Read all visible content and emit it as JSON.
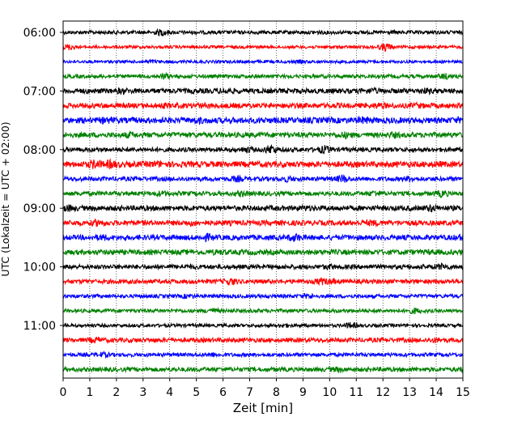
{
  "chart_data": {
    "type": "line",
    "title": "",
    "xlabel": "Zeit  [min]",
    "ylabel": "UTC (Lokalzeit = UTC + 02:00)",
    "xlim": [
      0,
      15
    ],
    "x_ticks": [
      "0",
      "1",
      "2",
      "3",
      "4",
      "5",
      "6",
      "7",
      "8",
      "9",
      "10",
      "11",
      "12",
      "13",
      "14",
      "15"
    ],
    "y_ticks": [
      "06:00",
      "07:00",
      "08:00",
      "09:00",
      "10:00",
      "11:00"
    ],
    "grid": "vertical dotted lines at each minute",
    "legend": "none",
    "traces_per_hour": 4,
    "minutes_per_trace": 15,
    "color_cycle": [
      "#000000",
      "#ff0000",
      "#0000ff",
      "#008000"
    ],
    "traces": [
      {
        "start": "06:00",
        "color": "#000000",
        "amplitude": 0.25,
        "bursts": [
          {
            "t": 3.7,
            "a": 0.55
          },
          {
            "t": 9.6,
            "a": 0.3
          }
        ]
      },
      {
        "start": "06:15",
        "color": "#ff0000",
        "amplitude": 0.2,
        "bursts": [
          {
            "t": 0.2,
            "a": 0.5
          },
          {
            "t": 12.1,
            "a": 0.65
          }
        ]
      },
      {
        "start": "06:30",
        "color": "#0000ff",
        "amplitude": 0.2,
        "bursts": [
          {
            "t": 3.3,
            "a": 0.3
          },
          {
            "t": 8.9,
            "a": 0.3
          }
        ]
      },
      {
        "start": "06:45",
        "color": "#008000",
        "amplitude": 0.25,
        "bursts": [
          {
            "t": 3.8,
            "a": 0.5
          },
          {
            "t": 14.3,
            "a": 0.5
          }
        ]
      },
      {
        "start": "07:00",
        "color": "#000000",
        "amplitude": 0.35,
        "bursts": [
          {
            "t": 2.2,
            "a": 0.5
          },
          {
            "t": 6.1,
            "a": 0.5
          },
          {
            "t": 11.6,
            "a": 0.5
          },
          {
            "t": 13.6,
            "a": 0.5
          }
        ]
      },
      {
        "start": "07:15",
        "color": "#ff0000",
        "amplitude": 0.35,
        "bursts": [
          {
            "t": 3.7,
            "a": 0.45
          },
          {
            "t": 5.2,
            "a": 0.45
          },
          {
            "t": 11.9,
            "a": 0.5
          },
          {
            "t": 13.3,
            "a": 0.45
          }
        ]
      },
      {
        "start": "07:30",
        "color": "#0000ff",
        "amplitude": 0.4,
        "bursts": [
          {
            "t": 1.6,
            "a": 0.55
          },
          {
            "t": 5.1,
            "a": 0.55
          },
          {
            "t": 11.3,
            "a": 0.6
          },
          {
            "t": 14.8,
            "a": 0.5
          }
        ]
      },
      {
        "start": "07:45",
        "color": "#008000",
        "amplitude": 0.35,
        "bursts": [
          {
            "t": 2.5,
            "a": 0.5
          },
          {
            "t": 10.6,
            "a": 0.55
          },
          {
            "t": 12.4,
            "a": 0.5
          }
        ]
      },
      {
        "start": "08:00",
        "color": "#000000",
        "amplitude": 0.3,
        "bursts": [
          {
            "t": 6.9,
            "a": 0.5
          },
          {
            "t": 7.8,
            "a": 0.75
          },
          {
            "t": 9.8,
            "a": 0.65
          }
        ]
      },
      {
        "start": "08:15",
        "color": "#ff0000",
        "amplitude": 0.4,
        "bursts": [
          {
            "t": 1.2,
            "a": 0.75
          },
          {
            "t": 1.8,
            "a": 0.7
          },
          {
            "t": 3.5,
            "a": 0.55
          },
          {
            "t": 14.0,
            "a": 0.5
          }
        ]
      },
      {
        "start": "08:30",
        "color": "#0000ff",
        "amplitude": 0.3,
        "bursts": [
          {
            "t": 6.5,
            "a": 0.5
          },
          {
            "t": 8.4,
            "a": 0.5
          },
          {
            "t": 10.5,
            "a": 0.65
          },
          {
            "t": 13.0,
            "a": 0.5
          }
        ]
      },
      {
        "start": "08:45",
        "color": "#008000",
        "amplitude": 0.3,
        "bursts": [
          {
            "t": 3.7,
            "a": 0.45
          },
          {
            "t": 6.7,
            "a": 0.5
          },
          {
            "t": 11.7,
            "a": 0.5
          },
          {
            "t": 14.2,
            "a": 0.55
          }
        ]
      },
      {
        "start": "09:00",
        "color": "#000000",
        "amplitude": 0.35,
        "bursts": [
          {
            "t": 0.2,
            "a": 0.55
          },
          {
            "t": 9.1,
            "a": 0.45
          },
          {
            "t": 13.8,
            "a": 0.6
          }
        ]
      },
      {
        "start": "09:15",
        "color": "#ff0000",
        "amplitude": 0.35,
        "bursts": [
          {
            "t": 1.3,
            "a": 0.55
          },
          {
            "t": 4.8,
            "a": 0.5
          },
          {
            "t": 11.6,
            "a": 0.5
          }
        ]
      },
      {
        "start": "09:30",
        "color": "#0000ff",
        "amplitude": 0.35,
        "bursts": [
          {
            "t": 1.5,
            "a": 0.5
          },
          {
            "t": 5.4,
            "a": 0.6
          },
          {
            "t": 8.7,
            "a": 0.65
          },
          {
            "t": 14.9,
            "a": 0.5
          }
        ]
      },
      {
        "start": "09:45",
        "color": "#008000",
        "amplitude": 0.35,
        "bursts": [
          {
            "t": 5.8,
            "a": 0.45
          },
          {
            "t": 13.8,
            "a": 0.45
          }
        ]
      },
      {
        "start": "10:00",
        "color": "#000000",
        "amplitude": 0.3,
        "bursts": [
          {
            "t": 4.6,
            "a": 0.4
          },
          {
            "t": 10.0,
            "a": 0.45
          },
          {
            "t": 14.2,
            "a": 0.55
          }
        ]
      },
      {
        "start": "10:15",
        "color": "#ff0000",
        "amplitude": 0.3,
        "bursts": [
          {
            "t": 6.3,
            "a": 0.6
          },
          {
            "t": 9.7,
            "a": 0.55
          },
          {
            "t": 10.0,
            "a": 0.5
          }
        ]
      },
      {
        "start": "10:30",
        "color": "#0000ff",
        "amplitude": 0.25,
        "bursts": [
          {
            "t": 4.7,
            "a": 0.4
          },
          {
            "t": 9.2,
            "a": 0.45
          }
        ]
      },
      {
        "start": "10:45",
        "color": "#008000",
        "amplitude": 0.25,
        "bursts": [
          {
            "t": 5.6,
            "a": 0.45
          },
          {
            "t": 13.2,
            "a": 0.5
          }
        ]
      },
      {
        "start": "11:00",
        "color": "#000000",
        "amplitude": 0.22,
        "bursts": [
          {
            "t": 10.8,
            "a": 0.5
          },
          {
            "t": 8.3,
            "a": 0.35
          }
        ]
      },
      {
        "start": "11:15",
        "color": "#ff0000",
        "amplitude": 0.3,
        "bursts": [
          {
            "t": 1.2,
            "a": 0.5
          },
          {
            "t": 14.0,
            "a": 0.45
          }
        ]
      },
      {
        "start": "11:30",
        "color": "#0000ff",
        "amplitude": 0.25,
        "bursts": [
          {
            "t": 1.5,
            "a": 0.45
          },
          {
            "t": 5.6,
            "a": 0.4
          }
        ]
      },
      {
        "start": "11:45",
        "color": "#008000",
        "amplitude": 0.3,
        "bursts": [
          {
            "t": 10.3,
            "a": 0.45
          },
          {
            "t": 15.0,
            "a": 0.4
          }
        ]
      }
    ]
  }
}
